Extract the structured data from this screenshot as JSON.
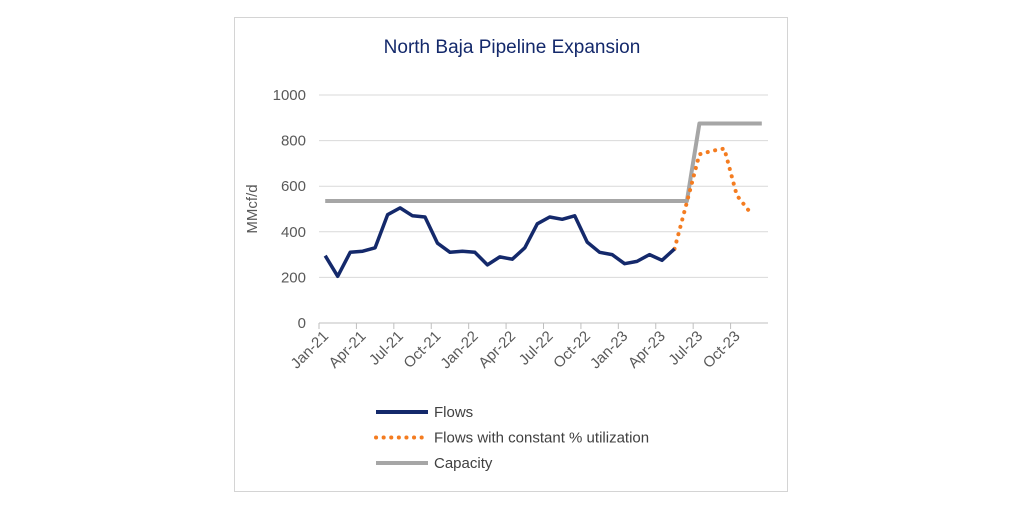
{
  "chart_data": {
    "type": "line",
    "title": "North Baja Pipeline Expansion",
    "ylabel": "MMcf/d",
    "xlabel": "",
    "ylim": [
      0,
      1000
    ],
    "yticks": [
      0,
      200,
      400,
      600,
      800,
      1000
    ],
    "x_tick_labels": [
      "Jan-21",
      "Apr-21",
      "Jul-21",
      "Oct-21",
      "Jan-22",
      "Apr-22",
      "Jul-22",
      "Oct-22",
      "Jan-23",
      "Apr-23",
      "Jul-23",
      "Oct-23"
    ],
    "months": [
      "Jan-21",
      "Feb-21",
      "Mar-21",
      "Apr-21",
      "May-21",
      "Jun-21",
      "Jul-21",
      "Aug-21",
      "Sep-21",
      "Oct-21",
      "Nov-21",
      "Dec-21",
      "Jan-22",
      "Feb-22",
      "Mar-22",
      "Apr-22",
      "May-22",
      "Jun-22",
      "Jul-22",
      "Aug-22",
      "Sep-22",
      "Oct-22",
      "Nov-22",
      "Dec-22",
      "Jan-23",
      "Feb-23",
      "Mar-23",
      "Apr-23",
      "May-23",
      "Jun-23",
      "Jul-23",
      "Aug-23",
      "Sep-23",
      "Oct-23",
      "Nov-23",
      "Dec-23"
    ],
    "series": [
      {
        "name": "Flows",
        "color": "#14296b",
        "style": "solid",
        "start_month": "Jan-21",
        "values": [
          295,
          205,
          310,
          315,
          330,
          475,
          505,
          470,
          465,
          350,
          310,
          315,
          310,
          255,
          290,
          280,
          330,
          435,
          465,
          455,
          470,
          355,
          310,
          300,
          260,
          270,
          300,
          275,
          325
        ]
      },
      {
        "name": "Flows with constant % utilization",
        "color": "#f47c20",
        "style": "dotted",
        "start_month": "May-23",
        "values": [
          325,
          530,
          740,
          755,
          765,
          560,
          490
        ]
      },
      {
        "name": "Capacity",
        "color": "#a6a6a6",
        "style": "solid",
        "x_months": [
          "Jan-21",
          "Jun-23",
          "Jul-23",
          "Dec-23"
        ],
        "values": [
          535,
          535,
          875,
          875
        ]
      }
    ],
    "grid": "horizontal",
    "legend_position": "bottom"
  }
}
